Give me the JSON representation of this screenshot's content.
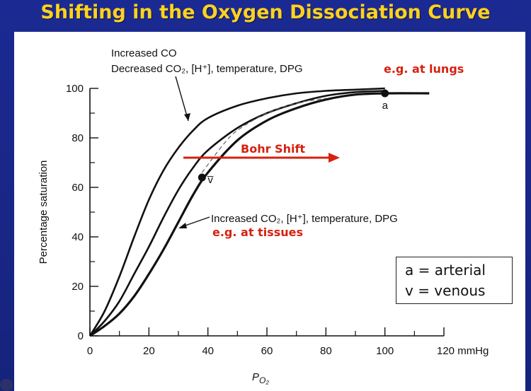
{
  "title": "Shifting in the Oxygen Dissociation Curve",
  "chart_data": {
    "type": "line",
    "ylabel": "Percentage saturation",
    "x_ticks": [
      "0",
      "20",
      "40",
      "60",
      "80",
      "100",
      "120 mmHg"
    ],
    "y_ticks": [
      "0",
      "20",
      "40",
      "60",
      "80",
      "100"
    ],
    "xlim": [
      0,
      120
    ],
    "ylim": [
      0,
      100
    ],
    "series": [
      {
        "role": "left-shift",
        "style": "solid",
        "x": [
          0,
          5,
          10,
          15,
          20,
          25,
          30,
          35,
          40,
          50,
          60,
          70,
          80,
          90,
          100
        ],
        "y": [
          0,
          10,
          24,
          40,
          55,
          67,
          76,
          83,
          88,
          93,
          96,
          98,
          99,
          99.5,
          100
        ]
      },
      {
        "role": "normal",
        "style": "solid",
        "x": [
          0,
          5,
          10,
          15,
          20,
          25,
          30,
          35,
          40,
          50,
          60,
          70,
          80,
          90,
          100
        ],
        "y": [
          0,
          6,
          14,
          25,
          36,
          48,
          59,
          68,
          75,
          84,
          90,
          94,
          97,
          98.5,
          99
        ]
      },
      {
        "role": "right-shift",
        "style": "solid",
        "x": [
          0,
          5,
          10,
          15,
          20,
          25,
          30,
          35,
          40,
          50,
          60,
          70,
          80,
          90,
          100,
          115
        ],
        "y": [
          0,
          4,
          9,
          16,
          25,
          35,
          46,
          57,
          66,
          79,
          87,
          92,
          95.5,
          97.5,
          98,
          98
        ]
      },
      {
        "role": "guide",
        "style": "dashed",
        "x": [
          38,
          45,
          50,
          60,
          70,
          80
        ],
        "y": [
          66,
          77,
          83,
          90,
          94,
          96
        ]
      }
    ],
    "points": [
      {
        "label": "a",
        "x": 100,
        "y": 98
      },
      {
        "label": "v̅",
        "x": 38,
        "y": 64
      }
    ],
    "annotations": {
      "left_shift_line1": "Increased CO",
      "left_shift_line2": "Decreased CO₂, [H⁺], temperature, DPG",
      "lungs": "e.g. at lungs",
      "bohr": "Bohr Shift",
      "right_shift": "Increased CO₂, [H⁺], temperature, DPG",
      "tissues": "e.g. at tissues"
    },
    "xlabel_main": "P",
    "xlabel_sub": "O₂"
  },
  "legend": {
    "arterial": "a = arterial",
    "venous": "v = venous"
  },
  "colors": {
    "title": "#ffd21e",
    "annotation_red": "#d6210f",
    "background": "#1b2a92"
  }
}
